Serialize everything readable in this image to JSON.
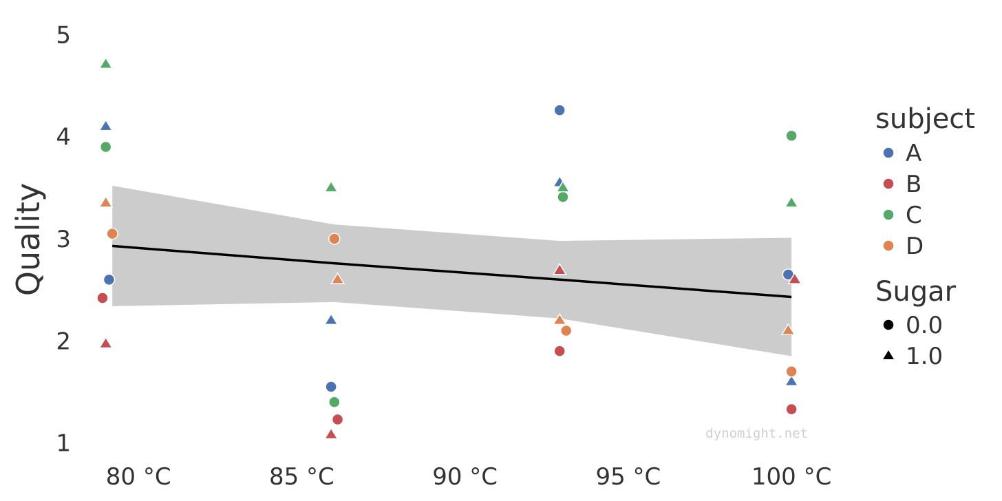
{
  "chart_data": {
    "type": "scatter",
    "title": "",
    "xlabel": "",
    "ylabel": "Quality",
    "xlim": [
      78.5,
      102
    ],
    "ylim": [
      0.95,
      5.05
    ],
    "x_ticks": [
      80,
      85,
      90,
      95,
      100
    ],
    "x_tick_labels": [
      "80 °C",
      "85 °C",
      "90 °C",
      "95 °C",
      "100 °C"
    ],
    "y_ticks": [
      1,
      2,
      3,
      4,
      5
    ],
    "y_tick_labels": [
      "1",
      "2",
      "3",
      "4",
      "5"
    ],
    "grid": false,
    "legend_position": "right",
    "watermark": "dynomight.net",
    "colors": {
      "A": "#4c72b0",
      "B": "#c44e52",
      "C": "#55a868",
      "D": "#dd8452",
      "band": "#cccccc",
      "line": "#000000"
    },
    "legend": {
      "subject_title": "subject",
      "subjects": [
        "A",
        "B",
        "C",
        "D"
      ],
      "sugar_title": "Sugar",
      "sugar_levels": [
        {
          "label": "0.0",
          "marker": "circle"
        },
        {
          "label": "1.0",
          "marker": "triangle"
        }
      ]
    },
    "series": [
      {
        "subject": "A",
        "sugar": 0,
        "x": [
          79.1,
          85.9,
          92.9,
          99.9
        ],
        "y": [
          2.6,
          1.55,
          4.26,
          2.65
        ]
      },
      {
        "subject": "A",
        "sugar": 1,
        "x": [
          79.0,
          85.9,
          92.9,
          100.0
        ],
        "y": [
          4.1,
          2.2,
          3.55,
          1.6
        ]
      },
      {
        "subject": "B",
        "sugar": 0,
        "x": [
          78.9,
          86.1,
          92.9,
          100.0
        ],
        "y": [
          2.42,
          1.23,
          1.9,
          1.33
        ]
      },
      {
        "subject": "B",
        "sugar": 1,
        "x": [
          79.0,
          85.9,
          92.9,
          100.1
        ],
        "y": [
          1.97,
          1.08,
          2.69,
          2.6
        ]
      },
      {
        "subject": "C",
        "sugar": 0,
        "x": [
          79.0,
          86.0,
          93.0,
          100.0
        ],
        "y": [
          3.9,
          1.4,
          3.41,
          4.01
        ]
      },
      {
        "subject": "C",
        "sugar": 1,
        "x": [
          79.0,
          85.9,
          93.0,
          100.0
        ],
        "y": [
          4.71,
          3.5,
          3.5,
          3.35
        ]
      },
      {
        "subject": "D",
        "sugar": 0,
        "x": [
          79.2,
          86.0,
          93.1,
          100.0
        ],
        "y": [
          3.05,
          3.0,
          2.1,
          1.7
        ]
      },
      {
        "subject": "D",
        "sugar": 1,
        "x": [
          79.0,
          86.1,
          92.9,
          99.9
        ],
        "y": [
          3.35,
          2.6,
          2.2,
          2.1
        ]
      }
    ],
    "regression": {
      "x": [
        79.2,
        86.0,
        92.9,
        100.0
      ],
      "y": [
        2.93,
        2.76,
        2.6,
        2.43
      ],
      "ci_upper": [
        3.52,
        3.14,
        2.98,
        3.01
      ],
      "ci_lower": [
        2.34,
        2.38,
        2.22,
        1.85
      ]
    }
  }
}
